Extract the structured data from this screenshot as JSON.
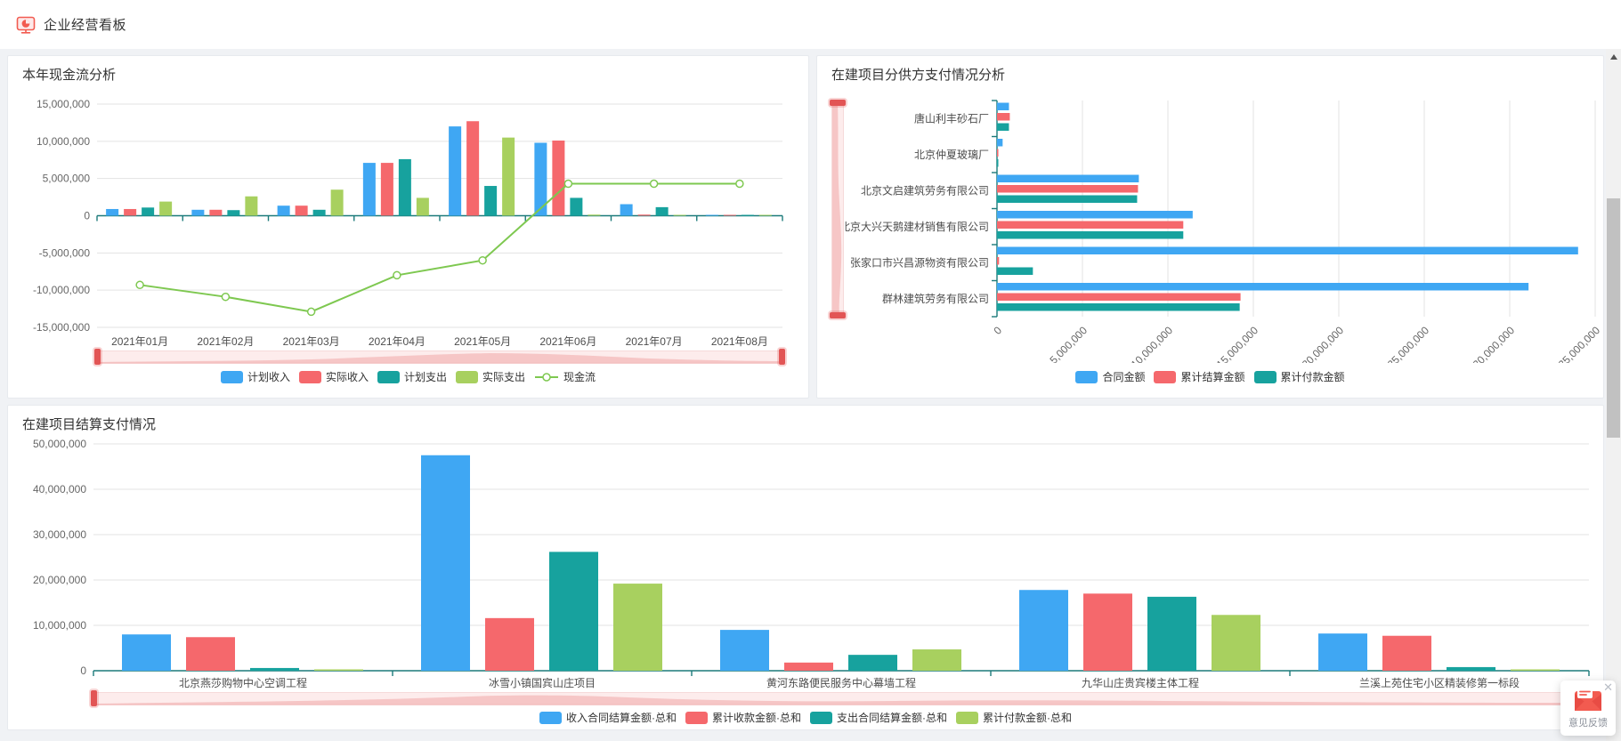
{
  "header": {
    "title": "企业经营看板",
    "icon": "dashboard-monitor-icon"
  },
  "colors": {
    "blue": "#3fa7f3",
    "red": "#f5686c",
    "teal": "#17a29e",
    "lime": "#a8d05f",
    "line_green": "#7ec850",
    "axis": "#1b7a7a",
    "grid": "#e3e3e3",
    "tick_label": "#666666",
    "category_label": "#4d4d4d",
    "slider_fill": "#f3b9b9",
    "slider_handle": "#e25555"
  },
  "chart_data": [
    {
      "id": "cashflow",
      "type": "bar+line",
      "title": "本年现金流分析",
      "categories": [
        "2021年01月",
        "2021年02月",
        "2021年03月",
        "2021年04月",
        "2021年05月",
        "2021年06月",
        "2021年07月",
        "2021年08月"
      ],
      "series": [
        {
          "name": "计划收入",
          "color_key": "blue",
          "values": [
            900000,
            800000,
            1350000,
            7100000,
            12000000,
            9800000,
            1550000,
            80000
          ]
        },
        {
          "name": "实际收入",
          "color_key": "red",
          "values": [
            900000,
            800000,
            1350000,
            7100000,
            12700000,
            10100000,
            150000,
            60000
          ]
        },
        {
          "name": "计划支出",
          "color_key": "teal",
          "values": [
            1100000,
            750000,
            800000,
            7600000,
            4000000,
            2400000,
            1150000,
            80000
          ]
        },
        {
          "name": "实际支出",
          "color_key": "lime",
          "values": [
            1900000,
            2600000,
            3500000,
            2400000,
            10500000,
            150000,
            100000,
            50000
          ]
        }
      ],
      "line_series": {
        "name": "现金流",
        "color_key": "line_green",
        "values": [
          -9300000,
          -10900000,
          -12900000,
          -8000000,
          -6000000,
          4300000,
          4300000,
          4300000
        ]
      },
      "ylim": [
        -15000000,
        15000000
      ],
      "y_step": 5000000,
      "grid": true,
      "legend_position": "bottom"
    },
    {
      "id": "subcontractor",
      "type": "horizontal-bar",
      "title": "在建项目分供方支付情况分析",
      "categories": [
        "唐山利丰砂石厂",
        "北京仲夏玻璃厂",
        "北京文启建筑劳务有限公司",
        "北京大兴天鹅建材销售有限公司",
        "张家口市兴昌源物资有限公司",
        "群林建筑劳务有限公司"
      ],
      "series": [
        {
          "name": "合同金额",
          "color_key": "blue",
          "values": [
            700000,
            330000,
            8300000,
            11450000,
            34000000,
            31100000
          ]
        },
        {
          "name": "累计结算金额",
          "color_key": "red",
          "values": [
            750000,
            80000,
            8250000,
            10900000,
            120000,
            14250000
          ]
        },
        {
          "name": "累计付款金额",
          "color_key": "teal",
          "values": [
            700000,
            50000,
            8200000,
            10900000,
            2100000,
            14200000
          ]
        }
      ],
      "xlim": [
        0,
        35000000
      ],
      "x_step": 5000000,
      "grid": true,
      "legend_position": "bottom"
    },
    {
      "id": "settlement",
      "type": "bar",
      "title": "在建项目结算支付情况",
      "categories": [
        "北京燕莎购物中心空调工程",
        "冰雪小镇国宾山庄项目",
        "黄河东路便民服务中心幕墙工程",
        "九华山庄贵宾楼主体工程",
        "兰溪上苑住宅小区精装修第一标段"
      ],
      "series": [
        {
          "name": "收入合同结算金额·总和",
          "color_key": "blue",
          "values": [
            8000000,
            47500000,
            9000000,
            17800000,
            8200000
          ]
        },
        {
          "name": "累计收款金额·总和",
          "color_key": "red",
          "values": [
            7400000,
            11600000,
            1800000,
            17000000,
            7700000
          ]
        },
        {
          "name": "支出合同结算金额·总和",
          "color_key": "teal",
          "values": [
            600000,
            26200000,
            3500000,
            16300000,
            800000
          ]
        },
        {
          "name": "累计付款金额·总和",
          "color_key": "lime",
          "values": [
            300000,
            19200000,
            4700000,
            12300000,
            300000
          ]
        }
      ],
      "ylim": [
        0,
        50000000
      ],
      "y_step": 10000000,
      "grid": true,
      "legend_position": "bottom"
    }
  ],
  "feedback": {
    "label": "意见反馈",
    "close_glyph": "✕",
    "icon": "envelope-icon"
  },
  "scrollbar": {
    "up_arrow": "up-arrow-icon"
  }
}
